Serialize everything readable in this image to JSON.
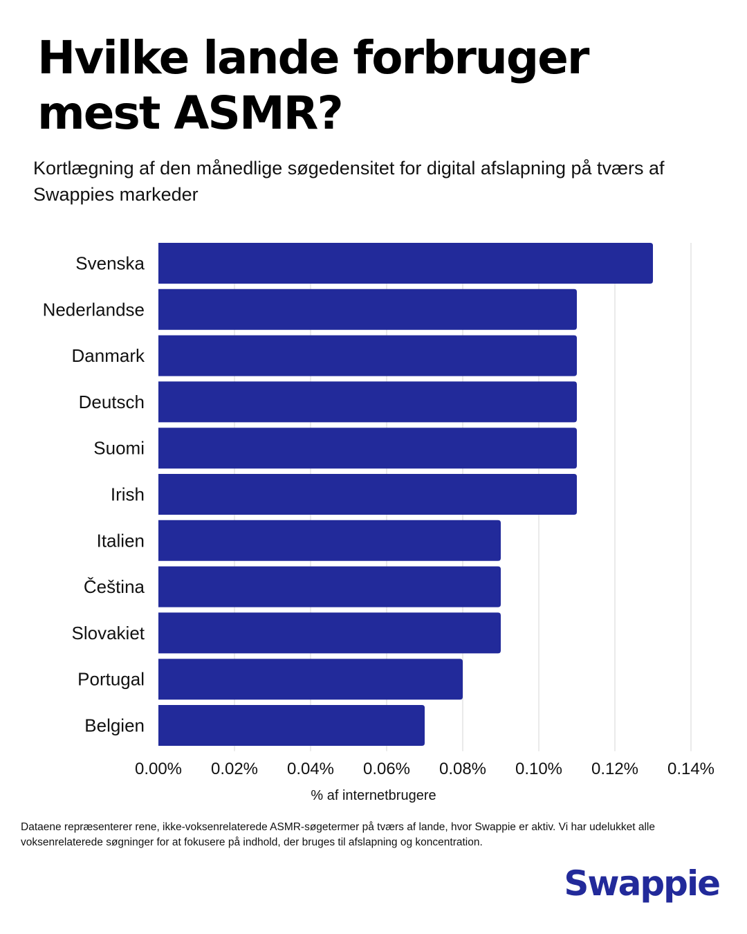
{
  "header": {
    "title": "Hvilke lande forbruger mest ASMR?",
    "subtitle": "Kortlægning af den månedlige søgedensitet for digital afslapning på tværs af Swappies markeder"
  },
  "footnote": "Dataene repræsenterer rene, ikke-voksenrelaterede ASMR-søgetermer på tværs af lande, hvor Swappie er aktiv. Vi har udelukket alle voksenrelaterede søgninger for at fokusere på indhold, der bruges til afslapning og koncentration.",
  "brand": {
    "name": "Swappie",
    "color": "#222a9a"
  },
  "colors": {
    "bar": "#222a9a",
    "grid": "#dddddd",
    "text": "#111111"
  },
  "chart_data": {
    "type": "bar",
    "orientation": "horizontal",
    "title": "Hvilke lande forbruger mest ASMR?",
    "xlabel": "% af internetbrugere",
    "ylabel": "",
    "categories": [
      "Svenska",
      "Nederlandse",
      "Danmark",
      "Deutsch",
      "Suomi",
      "Irish",
      "Italien",
      "Čeština",
      "Slovakiet",
      "Portugal",
      "Belgien"
    ],
    "values": [
      0.13,
      0.11,
      0.11,
      0.11,
      0.11,
      0.11,
      0.09,
      0.09,
      0.09,
      0.08,
      0.07
    ],
    "unit": "%",
    "xlim": [
      0,
      0.14
    ],
    "xticks": [
      0,
      0.02,
      0.04,
      0.06,
      0.08,
      0.1,
      0.12,
      0.14
    ],
    "xtick_labels": [
      "0.00%",
      "0.02%",
      "0.04%",
      "0.06%",
      "0.08%",
      "0.10%",
      "0.12%",
      "0.14%"
    ],
    "grid": "vertical",
    "legend": "none"
  }
}
